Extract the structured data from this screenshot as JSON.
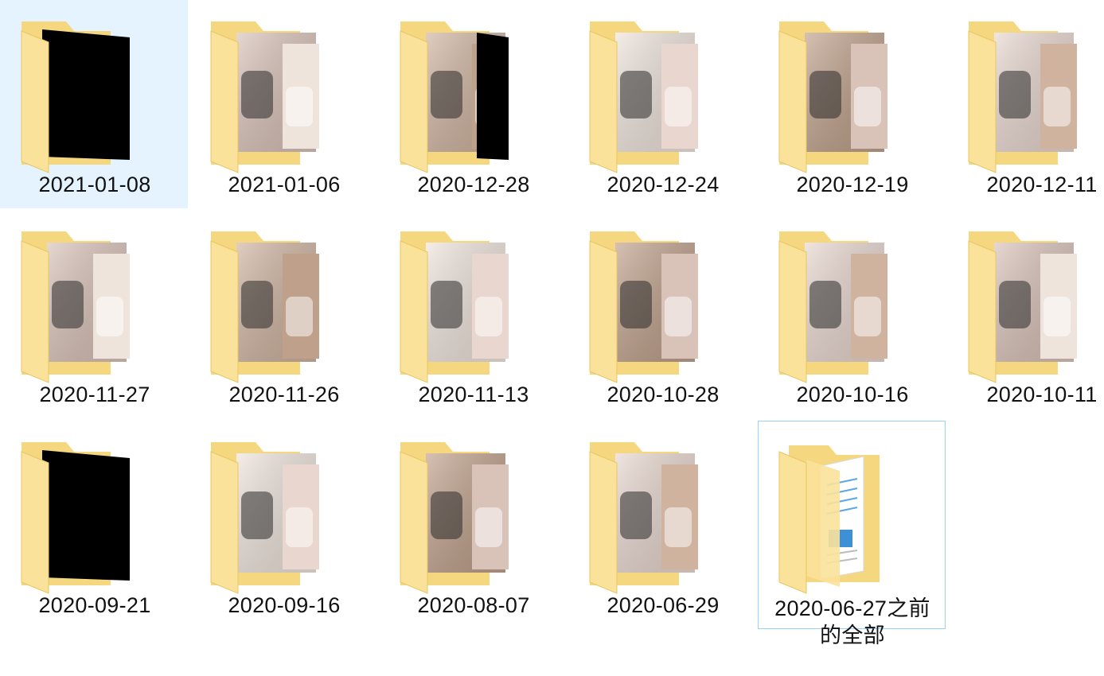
{
  "folders": [
    {
      "name": "2021-01-08",
      "thumb": "black"
    },
    {
      "name": "2021-01-06",
      "thumb": "photo"
    },
    {
      "name": "2020-12-28",
      "thumb": "photo-black"
    },
    {
      "name": "2020-12-24",
      "thumb": "photo"
    },
    {
      "name": "2020-12-19",
      "thumb": "photo"
    },
    {
      "name": "2020-12-11",
      "thumb": "photo"
    },
    {
      "name": "2020-11-27",
      "thumb": "photo"
    },
    {
      "name": "2020-11-26",
      "thumb": "photo"
    },
    {
      "name": "2020-11-13",
      "thumb": "photo"
    },
    {
      "name": "2020-10-28",
      "thumb": "photo"
    },
    {
      "name": "2020-10-16",
      "thumb": "photo"
    },
    {
      "name": "2020-10-11",
      "thumb": "photo"
    },
    {
      "name": "2020-09-21",
      "thumb": "black"
    },
    {
      "name": "2020-09-16",
      "thumb": "photo"
    },
    {
      "name": "2020-08-07",
      "thumb": "photo"
    },
    {
      "name": "2020-06-29",
      "thumb": "photo"
    },
    {
      "name": "2020-06-27之前的全部",
      "thumb": "documents"
    }
  ],
  "colors": {
    "folder_back": "#f5d77f",
    "folder_front": "#fbe29a",
    "selection": "#e5f3ff",
    "focus_border": "#99d1ff"
  },
  "selected_folder": "2021-01-08",
  "focused_folder": "2020-06-27之前的全部"
}
